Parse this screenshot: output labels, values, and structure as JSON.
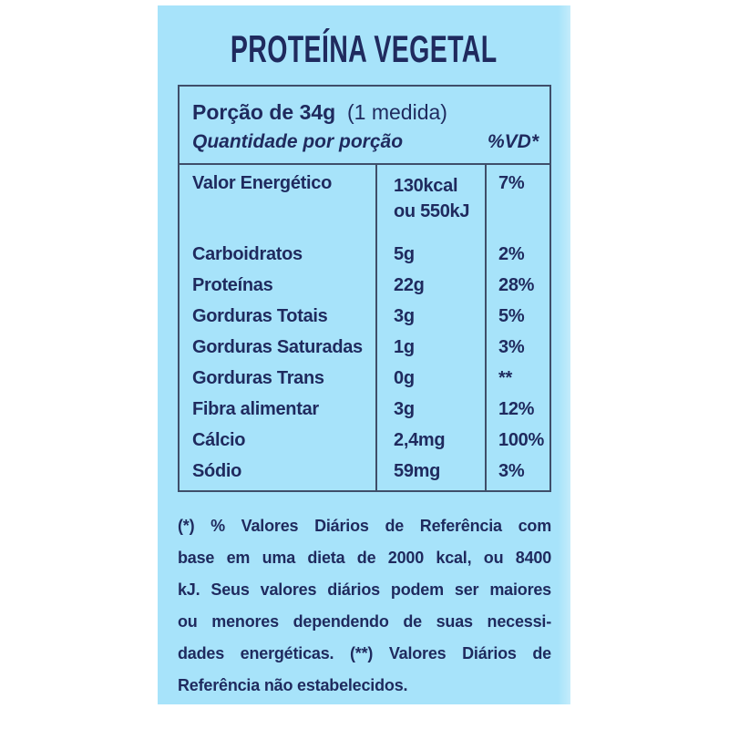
{
  "colors": {
    "page_background": "#ffffff",
    "panel_background": "#a7e3fa",
    "ink": "#1f2a5e",
    "table_border": "#3f4e69"
  },
  "title": "PROTEÍNA VEGETAL",
  "table": {
    "serving_label": "Porção de 34g",
    "serving_note": "(1 medida)",
    "col_quantity": "Quantidade por porção",
    "col_vd": "%VD*",
    "rows": [
      {
        "label": "Valor Energético",
        "value": "130kcal\nou 550kJ",
        "vd": "7%"
      },
      {
        "label": "Carboidratos",
        "value": "5g",
        "vd": "2%"
      },
      {
        "label": "Proteínas",
        "value": "22g",
        "vd": "28%"
      },
      {
        "label": "Gorduras Totais",
        "value": "3g",
        "vd": "5%"
      },
      {
        "label": "Gorduras Saturadas",
        "value": "1g",
        "vd": "3%"
      },
      {
        "label": "Gorduras Trans",
        "value": "0g",
        "vd": "**"
      },
      {
        "label": "Fibra alimentar",
        "value": "3g",
        "vd": "12%"
      },
      {
        "label": "Cálcio",
        "value": "2,4mg",
        "vd": "100%"
      },
      {
        "label": "Sódio",
        "value": "59mg",
        "vd": "3%"
      }
    ]
  },
  "footnote": {
    "lines": [
      "(*) % Valores Diários de Referência com",
      "base em uma dieta de 2000 kcal, ou 8400",
      "kJ. Seus valores diários podem ser maiores",
      "ou menores dependendo de suas necessi-",
      "dades energéticas. (**) Valores Diários de",
      "Referência não estabelecidos."
    ]
  }
}
